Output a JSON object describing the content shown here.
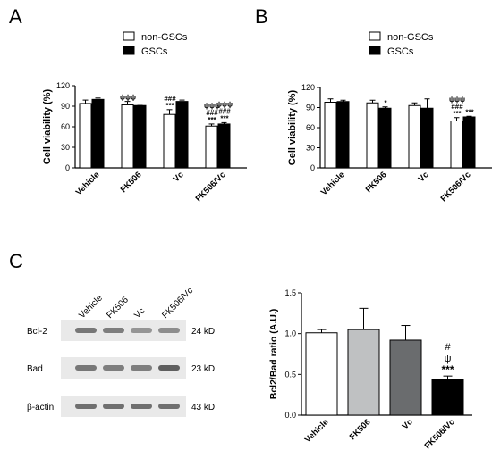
{
  "panels": {
    "A": "A",
    "B": "B",
    "C": "C"
  },
  "colors": {
    "white_bar": "#ffffff",
    "black_bar": "#000000",
    "light_gray_bar": "#bfc1c2",
    "dark_gray_bar": "#6a6c6e",
    "blot_background": "#e9e9e9",
    "band": "#505050"
  },
  "chart_data": [
    {
      "type": "bar",
      "panel": "A",
      "categories": [
        "Vehicle",
        "FK506",
        "Vc",
        "FK506/Vc"
      ],
      "series": [
        {
          "name": "non-GSCs",
          "values": [
            94,
            92,
            78,
            61
          ],
          "errors": [
            5,
            5,
            7,
            3
          ]
        },
        {
          "name": "GSCs",
          "values": [
            100,
            91,
            97,
            64
          ],
          "errors": [
            2,
            2,
            2,
            2
          ]
        }
      ],
      "annotations": [
        {
          "category": "FK506",
          "series": "non-GSCs",
          "lines": [
            "ψψψ"
          ]
        },
        {
          "category": "Vc",
          "series": "non-GSCs",
          "lines": [
            "###",
            "***"
          ]
        },
        {
          "category": "FK506/Vc",
          "series": "non-GSCs",
          "lines": [
            "ψψψ",
            "###",
            "***"
          ]
        },
        {
          "category": "FK506/Vc",
          "series": "GSCs",
          "lines": [
            "ψψψ",
            "###",
            "***"
          ]
        }
      ],
      "ylabel": "Cell viability (%)",
      "ylim": [
        0,
        120
      ],
      "yticks": [
        "0",
        "30",
        "60",
        "90",
        "120"
      ],
      "legend": "top"
    },
    {
      "type": "bar",
      "panel": "B",
      "categories": [
        "Vehicle",
        "FK506",
        "Vc",
        "FK506/Vc"
      ],
      "series": [
        {
          "name": "non-GSCs",
          "values": [
            98,
            97,
            93,
            70
          ],
          "errors": [
            5,
            4,
            4,
            5
          ]
        },
        {
          "name": "GSCs",
          "values": [
            99,
            89,
            89,
            76
          ],
          "errors": [
            2,
            2,
            14,
            1
          ]
        }
      ],
      "annotations": [
        {
          "category": "FK506",
          "series": "GSCs",
          "lines": [
            "*"
          ]
        },
        {
          "category": "FK506/Vc",
          "series": "non-GSCs",
          "lines": [
            "ψψψ",
            "###",
            "***"
          ]
        },
        {
          "category": "FK506/Vc",
          "series": "GSCs",
          "lines": [
            "***"
          ]
        }
      ],
      "ylabel": "Cell viability (%)",
      "ylim": [
        0,
        120
      ],
      "yticks": [
        "0",
        "30",
        "60",
        "90",
        "120"
      ],
      "legend": "top"
    },
    {
      "type": "bar",
      "panel": "C",
      "categories": [
        "Vehicle",
        "FK506",
        "Vc",
        "FK506/Vc"
      ],
      "values": [
        1.01,
        1.05,
        0.92,
        0.44
      ],
      "errors": [
        0.04,
        0.26,
        0.18,
        0.04
      ],
      "bar_colors": [
        "#ffffff",
        "#bfc1c2",
        "#6a6c6e",
        "#000000"
      ],
      "annotations": [
        {
          "category": "FK506/Vc",
          "lines": [
            "#",
            "ψ",
            "***"
          ]
        }
      ],
      "ylabel": "Bcl2/Bad ratio (A.U.)",
      "ylim": [
        0,
        1.5
      ],
      "yticks": [
        "0.0",
        "0.5",
        "1.0",
        "1.5"
      ]
    }
  ],
  "western_blot": {
    "lanes": [
      "Vehicle",
      "FK506",
      "Vc",
      "FK506/Vc"
    ],
    "rows": [
      {
        "protein": "Bcl-2",
        "size": "24 kD",
        "intensity": [
          0.75,
          0.7,
          0.55,
          0.6
        ]
      },
      {
        "protein": "Bad",
        "size": "23 kD",
        "intensity": [
          0.75,
          0.7,
          0.7,
          0.9
        ]
      },
      {
        "protein": "β-actin",
        "size": "43 kD",
        "intensity": [
          0.8,
          0.8,
          0.8,
          0.8
        ]
      }
    ]
  }
}
